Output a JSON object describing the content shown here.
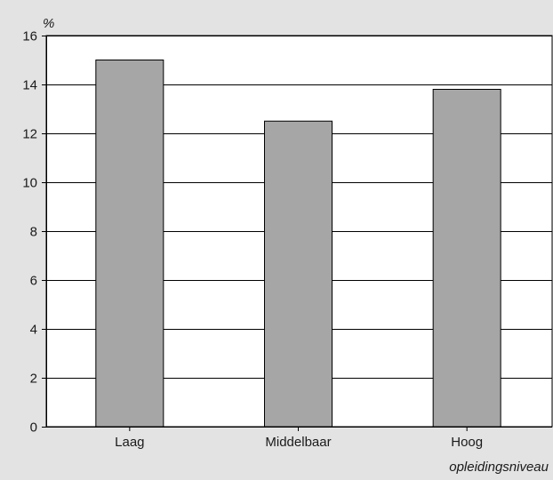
{
  "chart_data": {
    "type": "bar",
    "title": "",
    "ylabel": "%",
    "xlabel": "opleidingsniveau",
    "categories": [
      "Laag",
      "Middelbaar",
      "Hoog"
    ],
    "values": [
      15.0,
      12.5,
      13.8
    ],
    "ylim": [
      0,
      16
    ],
    "yticks": [
      0,
      2,
      4,
      6,
      8,
      10,
      12,
      14,
      16
    ],
    "grid": true,
    "colors": {
      "bar": "#a6a6a6",
      "plot_background": "#ffffff",
      "page_background": "#e3e3e3",
      "axis": "#000000"
    }
  }
}
